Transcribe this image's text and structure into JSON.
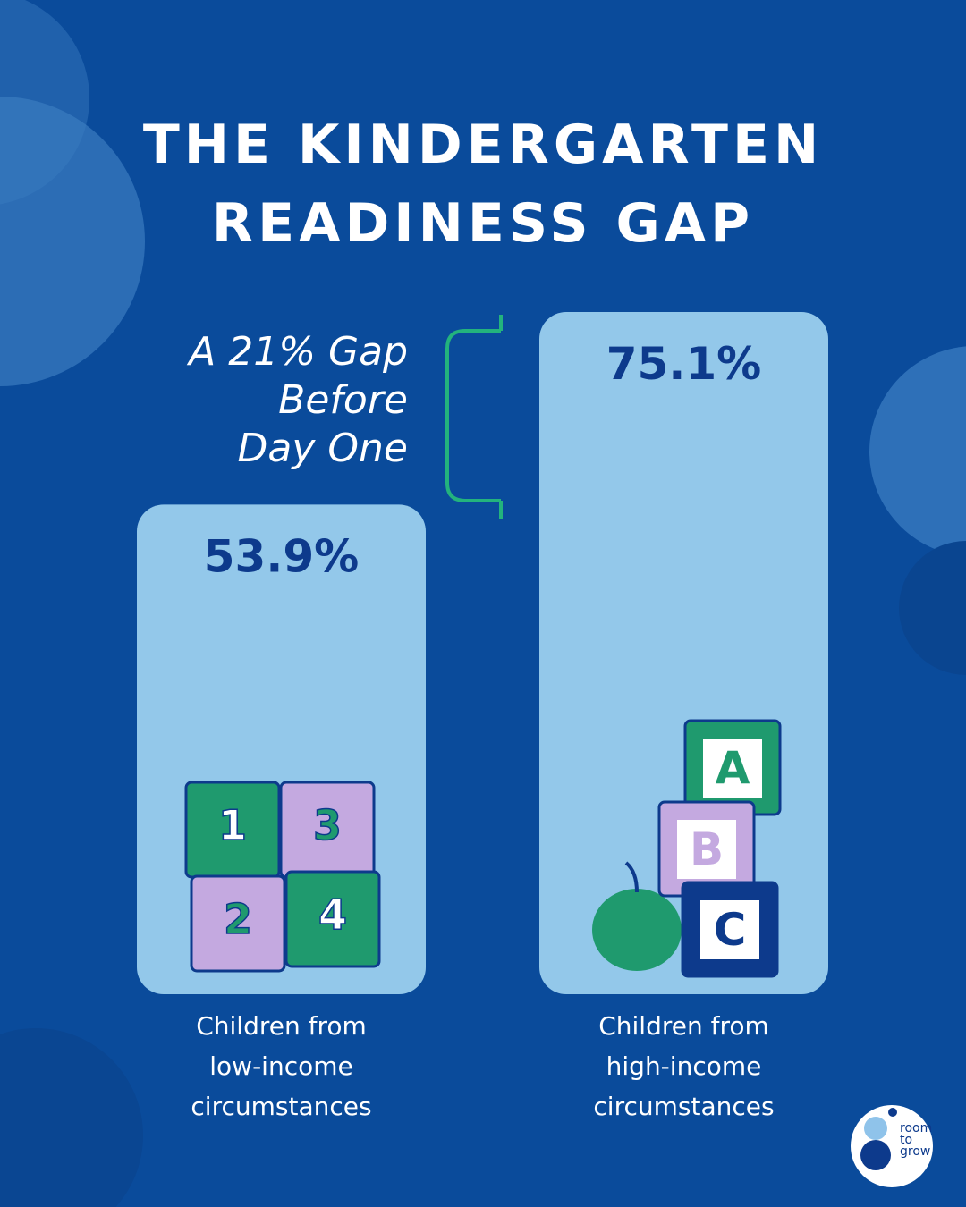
{
  "chart_data": {
    "type": "bar",
    "title": "THE KINDERGARTEN READINESS GAP",
    "annotation": [
      "A 21% Gap",
      "Before",
      "Day One"
    ],
    "categories": [
      "Children from low-income circumstances",
      "Children from high-income circumstances"
    ],
    "values": [
      53.9,
      75.1
    ],
    "value_labels": [
      "53.9%",
      "75.1%"
    ],
    "color": "#93c8ea",
    "label_color": "#0d3a8c"
  },
  "illustrations": {
    "puzzle": [
      "1",
      "3",
      "2",
      "4"
    ],
    "blocks": [
      "A",
      "B",
      "C"
    ]
  },
  "logo": [
    "room",
    "to",
    "grow"
  ]
}
